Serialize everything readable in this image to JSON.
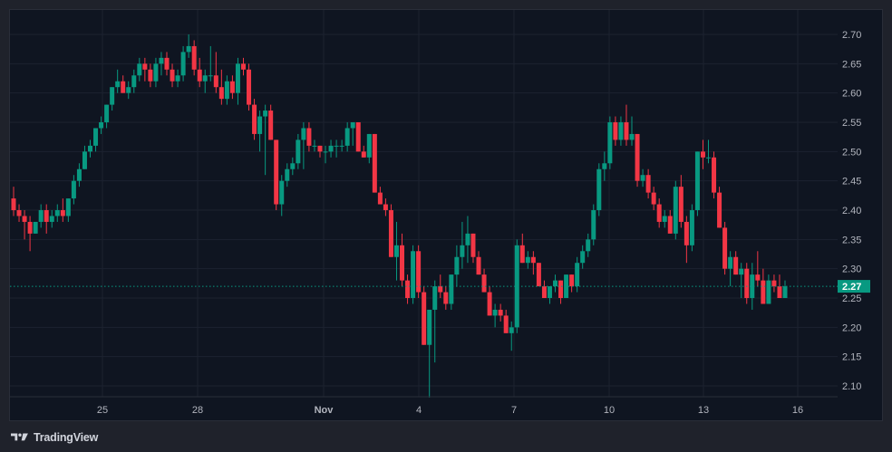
{
  "app": {
    "brand": "TradingView",
    "theme": {
      "background": "#1f222b",
      "panel": "#0f1521",
      "grid": "#1c2230",
      "axis_text": "#b2b5be",
      "up": "#089981",
      "down": "#f23645",
      "last_price_bg": "#089981"
    }
  },
  "price_axis": {
    "labels": [
      "2.70",
      "2.65",
      "2.60",
      "2.55",
      "2.50",
      "2.45",
      "2.40",
      "2.35",
      "2.30",
      "2.25",
      "2.20",
      "2.15",
      "2.10"
    ],
    "last_price": "2.27"
  },
  "time_axis": {
    "labels": [
      "25",
      "28",
      "Nov",
      "4",
      "7",
      "10",
      "13",
      "16"
    ]
  },
  "chart_data": {
    "type": "candlestick",
    "title": "",
    "xlabel": "",
    "ylabel": "",
    "ylim": [
      2.08,
      2.72
    ],
    "x_tick_labels": [
      "25",
      "28",
      "Nov",
      "4",
      "7",
      "10",
      "13",
      "16"
    ],
    "y_tick_labels": [
      2.7,
      2.65,
      2.6,
      2.55,
      2.5,
      2.45,
      2.4,
      2.35,
      2.3,
      2.25,
      2.2,
      2.15,
      2.1
    ],
    "last_price": 2.27,
    "grid": true,
    "interval_note": "approx. 4-hour candles, ~Oct 22 to Nov 15",
    "candles": [
      [
        2.42,
        2.44,
        2.39,
        2.4
      ],
      [
        2.4,
        2.41,
        2.38,
        2.39
      ],
      [
        2.39,
        2.4,
        2.35,
        2.38
      ],
      [
        2.38,
        2.39,
        2.33,
        2.36
      ],
      [
        2.36,
        2.38,
        2.36,
        2.38
      ],
      [
        2.38,
        2.41,
        2.37,
        2.4
      ],
      [
        2.4,
        2.41,
        2.36,
        2.38
      ],
      [
        2.38,
        2.4,
        2.37,
        2.39
      ],
      [
        2.39,
        2.41,
        2.38,
        2.4
      ],
      [
        2.4,
        2.42,
        2.38,
        2.39
      ],
      [
        2.39,
        2.42,
        2.38,
        2.42
      ],
      [
        2.42,
        2.46,
        2.41,
        2.45
      ],
      [
        2.45,
        2.48,
        2.44,
        2.47
      ],
      [
        2.47,
        2.51,
        2.47,
        2.5
      ],
      [
        2.5,
        2.52,
        2.49,
        2.51
      ],
      [
        2.51,
        2.54,
        2.5,
        2.54
      ],
      [
        2.54,
        2.56,
        2.53,
        2.55
      ],
      [
        2.55,
        2.58,
        2.54,
        2.58
      ],
      [
        2.58,
        2.61,
        2.57,
        2.61
      ],
      [
        2.61,
        2.64,
        2.6,
        2.62
      ],
      [
        2.62,
        2.63,
        2.6,
        2.6
      ],
      [
        2.6,
        2.62,
        2.59,
        2.61
      ],
      [
        2.61,
        2.64,
        2.6,
        2.63
      ],
      [
        2.63,
        2.66,
        2.62,
        2.65
      ],
      [
        2.65,
        2.66,
        2.62,
        2.64
      ],
      [
        2.64,
        2.65,
        2.61,
        2.62
      ],
      [
        2.62,
        2.66,
        2.61,
        2.65
      ],
      [
        2.65,
        2.67,
        2.63,
        2.66
      ],
      [
        2.66,
        2.67,
        2.63,
        2.64
      ],
      [
        2.64,
        2.65,
        2.61,
        2.62
      ],
      [
        2.62,
        2.64,
        2.61,
        2.63
      ],
      [
        2.63,
        2.68,
        2.62,
        2.67
      ],
      [
        2.67,
        2.7,
        2.66,
        2.68
      ],
      [
        2.68,
        2.69,
        2.63,
        2.64
      ],
      [
        2.64,
        2.66,
        2.61,
        2.62
      ],
      [
        2.62,
        2.64,
        2.6,
        2.63
      ],
      [
        2.63,
        2.68,
        2.62,
        2.63
      ],
      [
        2.63,
        2.67,
        2.6,
        2.61
      ],
      [
        2.61,
        2.64,
        2.58,
        2.59
      ],
      [
        2.59,
        2.63,
        2.58,
        2.62
      ],
      [
        2.62,
        2.63,
        2.59,
        2.6
      ],
      [
        2.6,
        2.66,
        2.58,
        2.65
      ],
      [
        2.65,
        2.66,
        2.63,
        2.64
      ],
      [
        2.64,
        2.65,
        2.57,
        2.58
      ],
      [
        2.58,
        2.59,
        2.52,
        2.53
      ],
      [
        2.53,
        2.57,
        2.5,
        2.56
      ],
      [
        2.56,
        2.58,
        2.46,
        2.57
      ],
      [
        2.57,
        2.58,
        2.52,
        2.52
      ],
      [
        2.52,
        2.52,
        2.4,
        2.41
      ],
      [
        2.41,
        2.46,
        2.39,
        2.45
      ],
      [
        2.45,
        2.48,
        2.44,
        2.47
      ],
      [
        2.47,
        2.49,
        2.46,
        2.48
      ],
      [
        2.48,
        2.53,
        2.47,
        2.52
      ],
      [
        2.52,
        2.55,
        2.47,
        2.54
      ],
      [
        2.54,
        2.55,
        2.5,
        2.51
      ],
      [
        2.51,
        2.52,
        2.5,
        2.51
      ],
      [
        2.51,
        2.51,
        2.49,
        2.5
      ],
      [
        2.5,
        2.51,
        2.48,
        2.5
      ],
      [
        2.5,
        2.52,
        2.49,
        2.51
      ],
      [
        2.51,
        2.52,
        2.49,
        2.51
      ],
      [
        2.51,
        2.52,
        2.5,
        2.51
      ],
      [
        2.51,
        2.55,
        2.5,
        2.54
      ],
      [
        2.54,
        2.55,
        2.51,
        2.55
      ],
      [
        2.55,
        2.55,
        2.5,
        2.5
      ],
      [
        2.5,
        2.51,
        2.49,
        2.49
      ],
      [
        2.49,
        2.53,
        2.48,
        2.53
      ],
      [
        2.53,
        2.53,
        2.43,
        2.43
      ],
      [
        2.43,
        2.44,
        2.41,
        2.41
      ],
      [
        2.41,
        2.42,
        2.39,
        2.4
      ],
      [
        2.4,
        2.41,
        2.32,
        2.32
      ],
      [
        2.32,
        2.38,
        2.28,
        2.34
      ],
      [
        2.34,
        2.36,
        2.27,
        2.28
      ],
      [
        2.28,
        2.29,
        2.24,
        2.25
      ],
      [
        2.25,
        2.34,
        2.24,
        2.33
      ],
      [
        2.33,
        2.34,
        2.25,
        2.26
      ],
      [
        2.26,
        2.27,
        2.17,
        2.17
      ],
      [
        2.17,
        2.23,
        2.08,
        2.23
      ],
      [
        2.23,
        2.28,
        2.14,
        2.27
      ],
      [
        2.27,
        2.29,
        2.25,
        2.26
      ],
      [
        2.26,
        2.27,
        2.23,
        2.24
      ],
      [
        2.24,
        2.29,
        2.23,
        2.29
      ],
      [
        2.29,
        2.34,
        2.27,
        2.32
      ],
      [
        2.32,
        2.38,
        2.3,
        2.34
      ],
      [
        2.34,
        2.39,
        2.31,
        2.36
      ],
      [
        2.36,
        2.36,
        2.31,
        2.32
      ],
      [
        2.32,
        2.33,
        2.29,
        2.29
      ],
      [
        2.29,
        2.3,
        2.26,
        2.26
      ],
      [
        2.26,
        2.27,
        2.22,
        2.22
      ],
      [
        2.22,
        2.24,
        2.2,
        2.23
      ],
      [
        2.23,
        2.24,
        2.21,
        2.22
      ],
      [
        2.22,
        2.23,
        2.19,
        2.19
      ],
      [
        2.19,
        2.21,
        2.16,
        2.2
      ],
      [
        2.2,
        2.35,
        2.19,
        2.34
      ],
      [
        2.34,
        2.36,
        2.31,
        2.31
      ],
      [
        2.31,
        2.33,
        2.3,
        2.32
      ],
      [
        2.32,
        2.33,
        2.29,
        2.31
      ],
      [
        2.31,
        2.31,
        2.27,
        2.27
      ],
      [
        2.27,
        2.28,
        2.25,
        2.25
      ],
      [
        2.25,
        2.27,
        2.24,
        2.27
      ],
      [
        2.27,
        2.29,
        2.26,
        2.28
      ],
      [
        2.28,
        2.28,
        2.24,
        2.25
      ],
      [
        2.25,
        2.29,
        2.25,
        2.29
      ],
      [
        2.29,
        2.29,
        2.26,
        2.27
      ],
      [
        2.27,
        2.32,
        2.26,
        2.31
      ],
      [
        2.31,
        2.34,
        2.3,
        2.33
      ],
      [
        2.33,
        2.36,
        2.32,
        2.35
      ],
      [
        2.35,
        2.41,
        2.34,
        2.4
      ],
      [
        2.4,
        2.48,
        2.39,
        2.47
      ],
      [
        2.47,
        2.5,
        2.45,
        2.48
      ],
      [
        2.48,
        2.56,
        2.47,
        2.55
      ],
      [
        2.55,
        2.56,
        2.51,
        2.52
      ],
      [
        2.52,
        2.56,
        2.51,
        2.55
      ],
      [
        2.55,
        2.58,
        2.51,
        2.52
      ],
      [
        2.52,
        2.56,
        2.51,
        2.53
      ],
      [
        2.53,
        2.53,
        2.44,
        2.45
      ],
      [
        2.45,
        2.47,
        2.44,
        2.46
      ],
      [
        2.46,
        2.47,
        2.42,
        2.43
      ],
      [
        2.43,
        2.44,
        2.4,
        2.41
      ],
      [
        2.41,
        2.42,
        2.37,
        2.38
      ],
      [
        2.38,
        2.4,
        2.37,
        2.39
      ],
      [
        2.39,
        2.4,
        2.36,
        2.36
      ],
      [
        2.36,
        2.45,
        2.35,
        2.44
      ],
      [
        2.44,
        2.46,
        2.37,
        2.38
      ],
      [
        2.38,
        2.39,
        2.31,
        2.34
      ],
      [
        2.34,
        2.41,
        2.33,
        2.4
      ],
      [
        2.4,
        2.5,
        2.39,
        2.5
      ],
      [
        2.5,
        2.52,
        2.47,
        2.49
      ],
      [
        2.49,
        2.52,
        2.48,
        2.49
      ],
      [
        2.49,
        2.5,
        2.42,
        2.43
      ],
      [
        2.43,
        2.44,
        2.37,
        2.37
      ],
      [
        2.37,
        2.38,
        2.29,
        2.3
      ],
      [
        2.3,
        2.33,
        2.27,
        2.32
      ],
      [
        2.32,
        2.33,
        2.29,
        2.29
      ],
      [
        2.29,
        2.31,
        2.25,
        2.3
      ],
      [
        2.3,
        2.31,
        2.24,
        2.25
      ],
      [
        2.25,
        2.31,
        2.23,
        2.29
      ],
      [
        2.29,
        2.33,
        2.27,
        2.28
      ],
      [
        2.28,
        2.3,
        2.24,
        2.24
      ],
      [
        2.24,
        2.29,
        2.24,
        2.28
      ],
      [
        2.28,
        2.29,
        2.26,
        2.27
      ],
      [
        2.27,
        2.29,
        2.25,
        2.25
      ],
      [
        2.25,
        2.28,
        2.25,
        2.27
      ]
    ]
  }
}
